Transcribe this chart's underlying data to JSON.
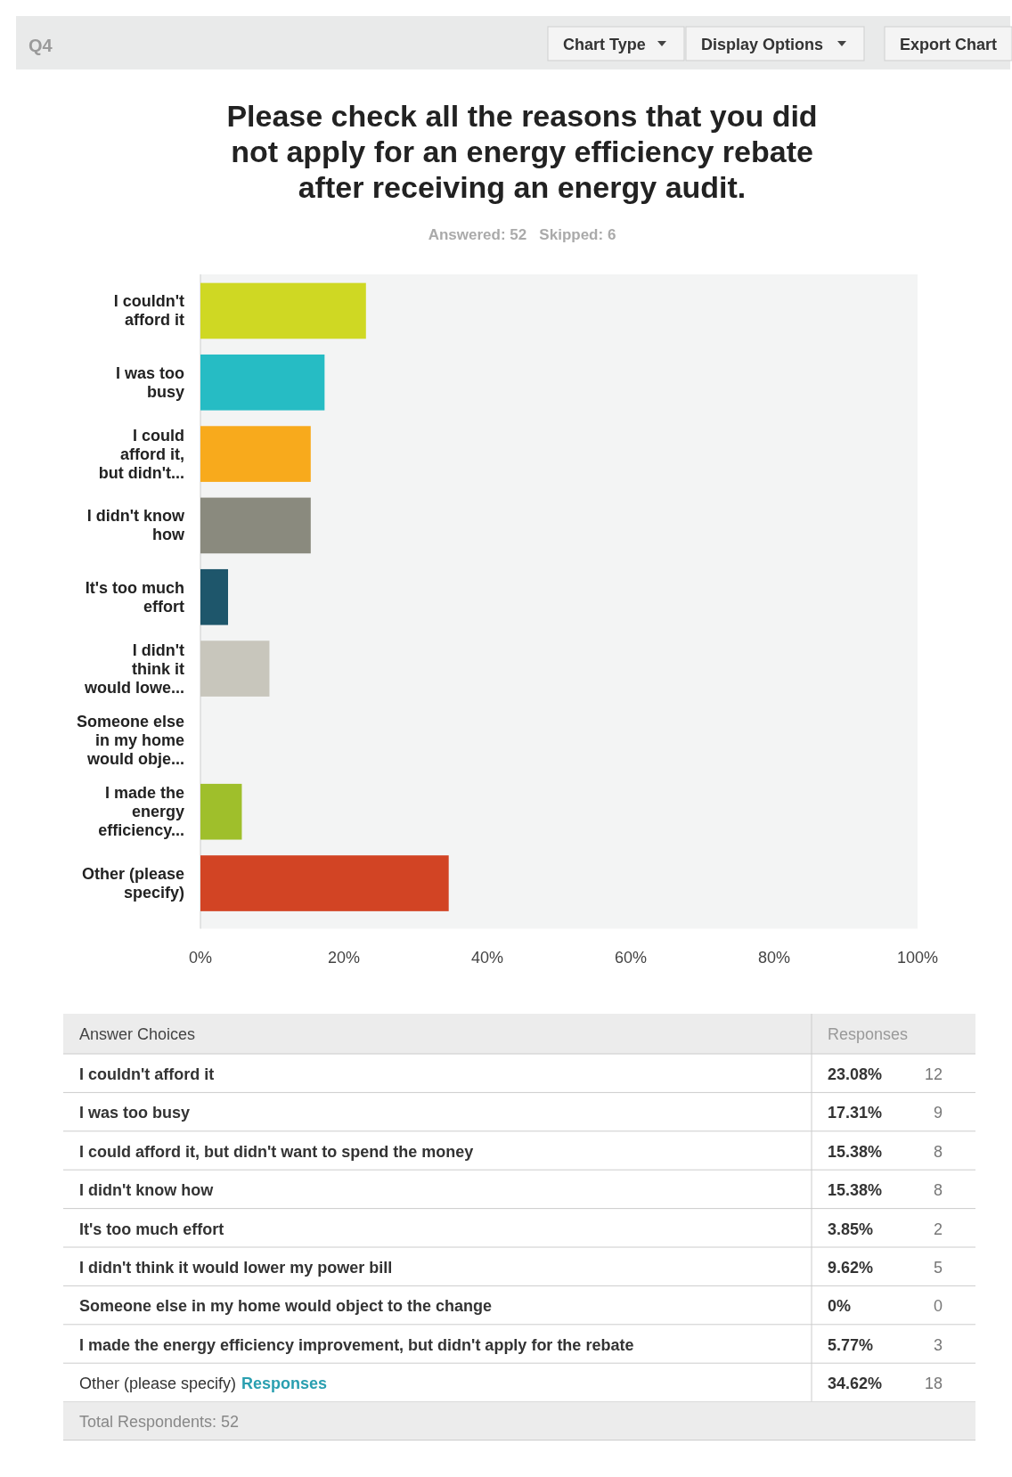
{
  "chart_data": [
    {
      "type": "bar",
      "orientation": "horizontal",
      "title": "Please check all the reasons that you did not apply for an energy efficiency rebate after receiving an energy audit.",
      "subtitle": "Answered: 52   Skipped: 6",
      "categories": [
        "I couldn't\nafford it",
        "I was too\nbusy",
        "I could\nafford it,\nbut didn't...",
        "I didn't know\nhow",
        "It's too much\neffort",
        "I didn't\nthink it\nwould lowe...",
        "Someone else\nin my home\nwould obje...",
        "I made the\nenergy\nefficiency...",
        "Other (please\nspecify)"
      ],
      "values": [
        23.08,
        17.31,
        15.38,
        15.38,
        3.85,
        9.62,
        0,
        5.77,
        34.62
      ],
      "colors": [
        "#cfd823",
        "#26bcc4",
        "#f8aa1c",
        "#8a8a7e",
        "#1e566b",
        "#c8c6bc",
        "#a3c23a",
        "#9fbf2b",
        "#d24424"
      ],
      "value_labels": [
        "23.08%",
        "17.31%",
        "15.38%",
        "15.38%",
        "3.85%",
        "9.62%",
        "0%",
        "5.77%",
        "34.62%"
      ],
      "xlim": [
        0,
        100
      ],
      "xticks": [
        {
          "value": 0,
          "label": "0%"
        },
        {
          "value": 20,
          "label": "20%"
        },
        {
          "value": 40,
          "label": "40%"
        },
        {
          "value": 60,
          "label": "60%"
        },
        {
          "value": 80,
          "label": "80%"
        },
        {
          "value": 100,
          "label": "100%"
        }
      ],
      "grid": false,
      "annotations": [
        "Q4",
        "Chart Type",
        "Display Options",
        "Export Chart"
      ]
    },
    {
      "type": "other",
      "title": "Answer Choices",
      "ylabel": "Responses",
      "categories": [
        "I couldn't afford it",
        "I was too busy",
        "I could afford it, but didn't want to spend the money",
        "I didn't know how",
        "It's too much effort",
        "I didn't think it would lower my power bill",
        "Someone else in my home would object to the change",
        "I made the energy efficiency improvement, but didn't apply for the rebate",
        "Other (please specify)"
      ],
      "values": [
        12,
        9,
        8,
        8,
        2,
        5,
        0,
        3,
        18
      ],
      "data_labels": true,
      "annotations": [
        "Responses",
        "Total Respondents: 52"
      ]
    }
  ]
}
